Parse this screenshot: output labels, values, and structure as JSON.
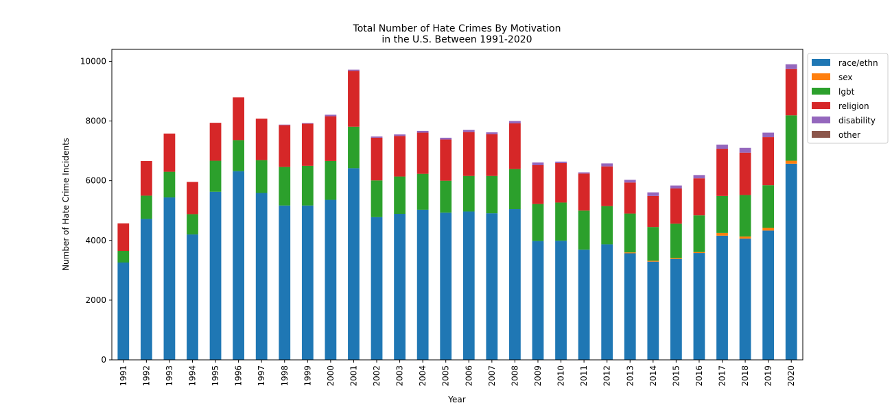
{
  "chart_data": {
    "type": "bar",
    "stacked": true,
    "title": "Total Number of Hate Crimes By Motivation\nin the U.S. Between 1991-2020",
    "xlabel": "Year",
    "ylabel": "Number of Hate Crime Incidents",
    "ylim": [
      0,
      10400
    ],
    "yticks": [
      0,
      2000,
      4000,
      6000,
      8000,
      10000
    ],
    "grid": false,
    "legend_position": "outside-top-right",
    "categories": [
      "1991",
      "1992",
      "1993",
      "1994",
      "1995",
      "1996",
      "1997",
      "1998",
      "1999",
      "2000",
      "2001",
      "2002",
      "2003",
      "2004",
      "2005",
      "2006",
      "2007",
      "2008",
      "2009",
      "2010",
      "2011",
      "2012",
      "2013",
      "2014",
      "2015",
      "2016",
      "2017",
      "2018",
      "2019",
      "2020"
    ],
    "series": [
      {
        "name": "race/ethn",
        "color": "#1f77b4",
        "values": [
          3260,
          4720,
          5440,
          4200,
          5630,
          6320,
          5590,
          5170,
          5170,
          5360,
          6420,
          4780,
          4890,
          5030,
          4930,
          4970,
          4910,
          5050,
          3980,
          3990,
          3690,
          3870,
          3570,
          3290,
          3380,
          3580,
          4160,
          4060,
          4330,
          6570
        ]
      },
      {
        "name": "sex",
        "color": "#ff7f0e",
        "values": [
          0,
          0,
          0,
          0,
          0,
          0,
          0,
          0,
          0,
          0,
          0,
          0,
          0,
          0,
          0,
          0,
          0,
          0,
          0,
          0,
          0,
          0,
          30,
          30,
          30,
          30,
          90,
          70,
          90,
          100
        ]
      },
      {
        "name": "lgbt",
        "color": "#2ca02c",
        "values": [
          390,
          780,
          860,
          680,
          1040,
          1040,
          1100,
          1290,
          1330,
          1300,
          1390,
          1230,
          1250,
          1200,
          1070,
          1190,
          1250,
          1340,
          1240,
          1280,
          1310,
          1280,
          1300,
          1130,
          1150,
          1230,
          1240,
          1390,
          1430,
          1520
        ]
      },
      {
        "name": "religion",
        "color": "#d62728",
        "values": [
          920,
          1160,
          1280,
          1080,
          1270,
          1430,
          1390,
          1400,
          1410,
          1500,
          1870,
          1430,
          1360,
          1380,
          1380,
          1470,
          1400,
          1530,
          1300,
          1320,
          1240,
          1330,
          1040,
          1040,
          1180,
          1240,
          1580,
          1420,
          1610,
          1550
        ]
      },
      {
        "name": "disability",
        "color": "#9467bd",
        "values": [
          0,
          0,
          0,
          0,
          0,
          0,
          0,
          20,
          20,
          50,
          40,
          40,
          50,
          60,
          60,
          70,
          60,
          80,
          90,
          50,
          40,
          100,
          90,
          120,
          100,
          110,
          140,
          160,
          150,
          160
        ]
      },
      {
        "name": "other",
        "color": "#8c564b",
        "values": [
          0,
          0,
          0,
          0,
          0,
          0,
          0,
          0,
          0,
          0,
          0,
          0,
          0,
          0,
          0,
          0,
          0,
          0,
          0,
          0,
          0,
          0,
          0,
          0,
          0,
          0,
          0,
          0,
          0,
          0
        ]
      }
    ]
  }
}
